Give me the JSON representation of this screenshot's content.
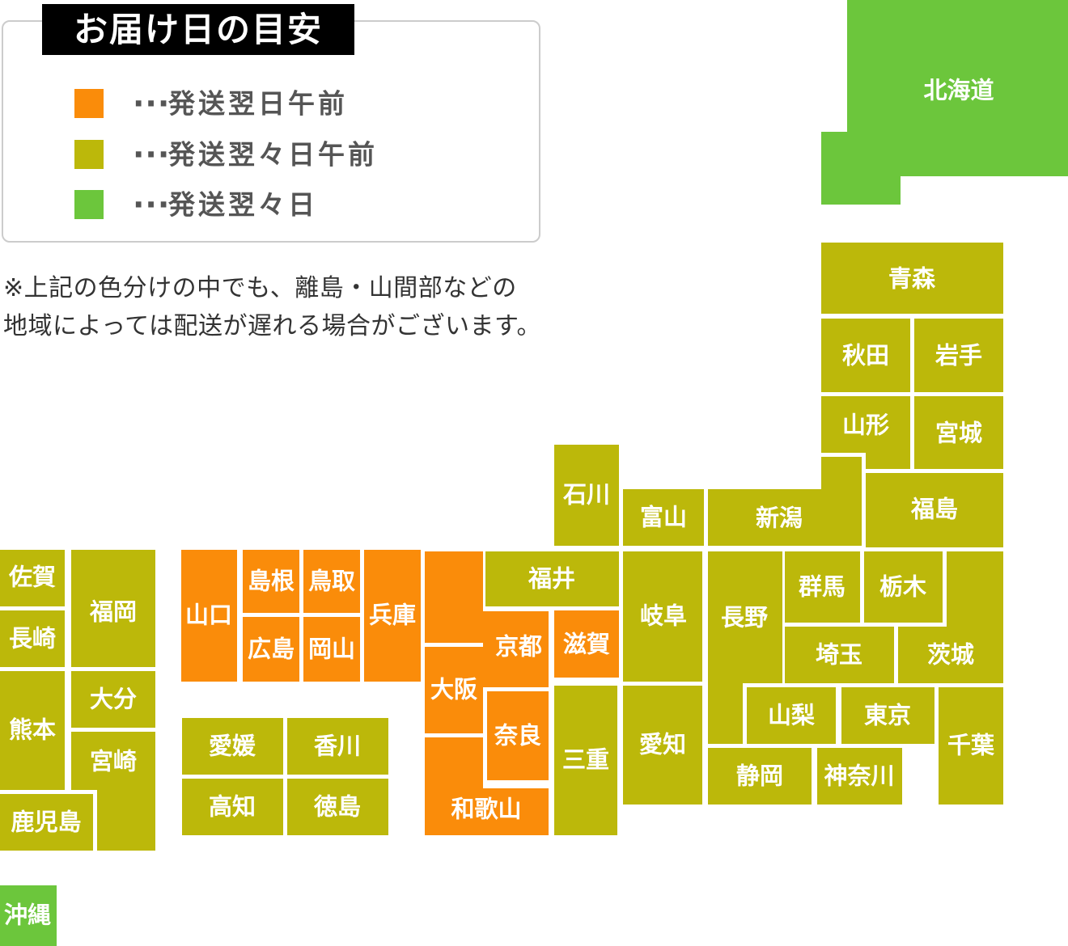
{
  "colors": {
    "next_day_am": "#fa8c0a",
    "two_days_after_am": "#bcb80a",
    "two_days_after": "#6cc63c"
  },
  "legend": {
    "title": "お届け日の目安",
    "ellipsis": "···",
    "items": [
      {
        "color": "next_day_am",
        "label": "発送翌日午前"
      },
      {
        "color": "two_days_after_am",
        "label": "発送翌々日午前"
      },
      {
        "color": "two_days_after",
        "label": "発送翌々日"
      }
    ]
  },
  "note": {
    "line1": "※上記の色分けの中でも、離島・山間部などの",
    "line2": "地域によっては配送が遅れる場合がございます。"
  },
  "map": {
    "prefectures": [
      {
        "id": "hokkaido",
        "name": "北海道",
        "color": "two_days_after",
        "rects": [
          [
            1047,
            0,
            273,
            218
          ],
          [
            1015,
            163,
            98,
            90
          ]
        ],
        "label": [
          1185,
          112
        ]
      },
      {
        "id": "okinawa",
        "name": "沖縄",
        "color": "two_days_after",
        "rects": [
          [
            0,
            1095,
            70,
            75
          ]
        ],
        "label": [
          34,
          1132
        ]
      },
      {
        "id": "aomori",
        "name": "青森",
        "color": "two_days_after_am",
        "rects": [
          [
            1015,
            300,
            225,
            88
          ]
        ],
        "label": [
          1127,
          345
        ]
      },
      {
        "id": "akita",
        "name": "秋田",
        "color": "two_days_after_am",
        "rects": [
          [
            1015,
            394,
            110,
            91
          ]
        ],
        "label": [
          1070,
          440
        ]
      },
      {
        "id": "iwate",
        "name": "岩手",
        "color": "two_days_after_am",
        "rects": [
          [
            1130,
            394,
            110,
            91
          ]
        ],
        "label": [
          1185,
          440
        ]
      },
      {
        "id": "yamagata",
        "name": "山形",
        "color": "two_days_after_am",
        "rects": [
          [
            1015,
            490,
            110,
            70
          ],
          [
            1070,
            490,
            55,
            90
          ]
        ],
        "label": [
          1070,
          526
        ]
      },
      {
        "id": "miyagi",
        "name": "宮城",
        "color": "two_days_after_am",
        "rects": [
          [
            1130,
            490,
            110,
            90
          ]
        ],
        "label": [
          1185,
          536
        ]
      },
      {
        "id": "fukushima",
        "name": "福島",
        "color": "two_days_after_am",
        "rects": [
          [
            1070,
            585,
            170,
            92
          ]
        ],
        "label": [
          1155,
          630
        ]
      },
      {
        "id": "niigata",
        "name": "新潟",
        "color": "two_days_after_am",
        "rects": [
          [
            875,
            605,
            190,
            70
          ],
          [
            1015,
            565,
            50,
            110
          ]
        ],
        "label": [
          963,
          641
        ]
      },
      {
        "id": "toyama",
        "name": "富山",
        "color": "two_days_after_am",
        "rects": [
          [
            770,
            605,
            100,
            70
          ]
        ],
        "label": [
          820,
          640
        ]
      },
      {
        "id": "ishikawa",
        "name": "石川",
        "color": "two_days_after_am",
        "rects": [
          [
            685,
            550,
            80,
            125
          ]
        ],
        "label": [
          725,
          612
        ]
      },
      {
        "id": "fukui",
        "name": "福井",
        "color": "two_days_after_am",
        "rects": [
          [
            600,
            682,
            165,
            68
          ]
        ],
        "label": [
          682,
          716
        ]
      },
      {
        "id": "gifu",
        "name": "岐阜",
        "color": "two_days_after_am",
        "rects": [
          [
            770,
            682,
            98,
            161
          ]
        ],
        "label": [
          820,
          762
        ]
      },
      {
        "id": "nagano",
        "name": "長野",
        "color": "two_days_after_am",
        "rects": [
          [
            875,
            682,
            92,
            163
          ],
          [
            875,
            845,
            43,
            75
          ]
        ],
        "label": [
          920,
          764
        ]
      },
      {
        "id": "gunma",
        "name": "群馬",
        "color": "two_days_after_am",
        "rects": [
          [
            970,
            682,
            93,
            88
          ]
        ],
        "label": [
          1016,
          726
        ]
      },
      {
        "id": "tochigi",
        "name": "栃木",
        "color": "two_days_after_am",
        "rects": [
          [
            1068,
            682,
            97,
            88
          ]
        ],
        "label": [
          1116,
          726
        ]
      },
      {
        "id": "saitama",
        "name": "埼玉",
        "color": "two_days_after_am",
        "rects": [
          [
            970,
            775,
            135,
            70
          ]
        ],
        "label": [
          1037,
          810
        ]
      },
      {
        "id": "ibaraki",
        "name": "茨城",
        "color": "two_days_after_am",
        "rects": [
          [
            1170,
            682,
            70,
            163
          ],
          [
            1110,
            775,
            130,
            70
          ]
        ],
        "label": [
          1175,
          810
        ]
      },
      {
        "id": "yamanashi",
        "name": "山梨",
        "color": "two_days_after_am",
        "rects": [
          [
            923,
            850,
            110,
            70
          ]
        ],
        "label": [
          978,
          885
        ]
      },
      {
        "id": "tokyo",
        "name": "東京",
        "color": "two_days_after_am",
        "rects": [
          [
            1040,
            850,
            115,
            70
          ]
        ],
        "label": [
          1097,
          885
        ]
      },
      {
        "id": "chiba",
        "name": "千葉",
        "color": "two_days_after_am",
        "rects": [
          [
            1160,
            850,
            80,
            145
          ]
        ],
        "label": [
          1200,
          922
        ]
      },
      {
        "id": "kanagawa",
        "name": "神奈川",
        "color": "two_days_after_am",
        "rects": [
          [
            1010,
            925,
            105,
            70
          ]
        ],
        "label": [
          1062,
          960
        ]
      },
      {
        "id": "shizuoka",
        "name": "静岡",
        "color": "two_days_after_am",
        "rects": [
          [
            875,
            925,
            128,
            70
          ]
        ],
        "label": [
          939,
          960
        ]
      },
      {
        "id": "aichi",
        "name": "愛知",
        "color": "two_days_after_am",
        "rects": [
          [
            770,
            848,
            98,
            147
          ]
        ],
        "label": [
          819,
          921
        ]
      },
      {
        "id": "mie",
        "name": "三重",
        "color": "two_days_after_am",
        "rects": [
          [
            685,
            848,
            78,
            185
          ]
        ],
        "label": [
          724,
          940
        ]
      },
      {
        "id": "shimane",
        "name": "島根",
        "color": "next_day_am",
        "rects": [
          [
            300,
            680,
            70,
            78
          ]
        ],
        "label": [
          335,
          719
        ]
      },
      {
        "id": "tottori",
        "name": "鳥取",
        "color": "next_day_am",
        "rects": [
          [
            375,
            680,
            70,
            78
          ]
        ],
        "label": [
          410,
          719
        ]
      },
      {
        "id": "hiroshima",
        "name": "広島",
        "color": "next_day_am",
        "rects": [
          [
            300,
            763,
            70,
            80
          ]
        ],
        "label": [
          335,
          803
        ]
      },
      {
        "id": "okayama",
        "name": "岡山",
        "color": "next_day_am",
        "rects": [
          [
            375,
            763,
            70,
            80
          ]
        ],
        "label": [
          410,
          803
        ]
      },
      {
        "id": "yamaguchi",
        "name": "山口",
        "color": "next_day_am",
        "rects": [
          [
            224,
            680,
            69,
            163
          ]
        ],
        "label": [
          258,
          761
        ]
      },
      {
        "id": "hyogo",
        "name": "兵庫",
        "color": "next_day_am",
        "rects": [
          [
            450,
            680,
            70,
            163
          ]
        ],
        "label": [
          485,
          761
        ]
      },
      {
        "id": "kyoto",
        "name": "京都",
        "color": "next_day_am",
        "rects": [
          [
            525,
            682,
            72,
            113
          ],
          [
            597,
            756,
            81,
            94
          ]
        ],
        "label": [
          641,
          800
        ]
      },
      {
        "id": "shiga",
        "name": "滋賀",
        "color": "next_day_am",
        "rects": [
          [
            685,
            755,
            80,
            83
          ]
        ],
        "label": [
          725,
          797
        ]
      },
      {
        "id": "osaka",
        "name": "大阪",
        "color": "next_day_am",
        "rects": [
          [
            525,
            800,
            72,
            107
          ]
        ],
        "label": [
          561,
          853
        ]
      },
      {
        "id": "nara",
        "name": "奈良",
        "color": "next_day_am",
        "rects": [
          [
            602,
            855,
            76,
            110
          ]
        ],
        "label": [
          640,
          910
        ]
      },
      {
        "id": "wakayama",
        "name": "和歌山",
        "color": "next_day_am",
        "rects": [
          [
            525,
            912,
            72,
            121
          ],
          [
            525,
            975,
            153,
            58
          ]
        ],
        "label": [
          601,
          1001
        ]
      },
      {
        "id": "ehime",
        "name": "愛媛",
        "color": "two_days_after_am",
        "rects": [
          [
            225,
            888,
            125,
            70
          ]
        ],
        "label": [
          287,
          923
        ]
      },
      {
        "id": "kagawa",
        "name": "香川",
        "color": "two_days_after_am",
        "rects": [
          [
            355,
            888,
            125,
            70
          ]
        ],
        "label": [
          417,
          923
        ]
      },
      {
        "id": "kochi",
        "name": "高知",
        "color": "two_days_after_am",
        "rects": [
          [
            225,
            963,
            125,
            70
          ]
        ],
        "label": [
          287,
          998
        ]
      },
      {
        "id": "tokushima",
        "name": "徳島",
        "color": "two_days_after_am",
        "rects": [
          [
            355,
            963,
            125,
            70
          ]
        ],
        "label": [
          417,
          998
        ]
      },
      {
        "id": "saga",
        "name": "佐賀",
        "color": "two_days_after_am",
        "rects": [
          [
            0,
            680,
            80,
            70
          ]
        ],
        "label": [
          40,
          714
        ]
      },
      {
        "id": "fukuoka",
        "name": "福岡",
        "color": "two_days_after_am",
        "rects": [
          [
            88,
            680,
            104,
            145
          ]
        ],
        "label": [
          140,
          757
        ]
      },
      {
        "id": "nagasaki",
        "name": "長崎",
        "color": "two_days_after_am",
        "rects": [
          [
            0,
            755,
            80,
            70
          ]
        ],
        "label": [
          40,
          790
        ]
      },
      {
        "id": "kumamoto",
        "name": "熊本",
        "color": "two_days_after_am",
        "rects": [
          [
            0,
            830,
            80,
            147
          ]
        ],
        "label": [
          40,
          903
        ]
      },
      {
        "id": "oita",
        "name": "大分",
        "color": "two_days_after_am",
        "rects": [
          [
            88,
            830,
            104,
            70
          ]
        ],
        "label": [
          140,
          865
        ]
      },
      {
        "id": "miyazaki",
        "name": "宮崎",
        "color": "two_days_after_am",
        "rects": [
          [
            88,
            905,
            104,
            72
          ],
          [
            120,
            905,
            72,
            147
          ]
        ],
        "label": [
          140,
          942
        ]
      },
      {
        "id": "kagoshima",
        "name": "鹿児島",
        "color": "two_days_after_am",
        "rects": [
          [
            0,
            982,
            115,
            70
          ]
        ],
        "label": [
          57,
          1017
        ]
      }
    ]
  }
}
